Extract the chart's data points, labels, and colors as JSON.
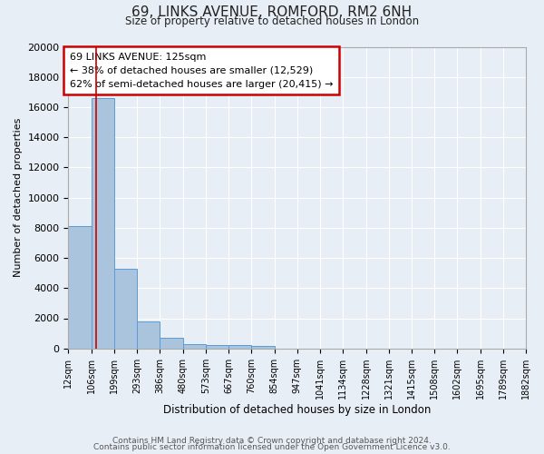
{
  "title": "69, LINKS AVENUE, ROMFORD, RM2 6NH",
  "subtitle": "Size of property relative to detached houses in London",
  "bar_values": [
    8100,
    16600,
    5300,
    1800,
    700,
    300,
    250,
    200,
    150,
    0,
    0,
    0,
    0,
    0,
    0,
    0,
    0,
    0,
    0,
    0
  ],
  "bin_labels": [
    "12sqm",
    "106sqm",
    "199sqm",
    "293sqm",
    "386sqm",
    "480sqm",
    "573sqm",
    "667sqm",
    "760sqm",
    "854sqm",
    "947sqm",
    "1041sqm",
    "1134sqm",
    "1228sqm",
    "1321sqm",
    "1415sqm",
    "1508sqm",
    "1602sqm",
    "1695sqm",
    "1789sqm",
    "1882sqm"
  ],
  "xlabel": "Distribution of detached houses by size in London",
  "ylabel": "Number of detached properties",
  "ylim": [
    0,
    20000
  ],
  "yticks": [
    0,
    2000,
    4000,
    6000,
    8000,
    10000,
    12000,
    14000,
    16000,
    18000,
    20000
  ],
  "bar_color": "#aac4de",
  "bar_edgecolor": "#5b9bd5",
  "bg_color": "#e8eef5",
  "grid_color": "#ffffff",
  "red_line_x": 125,
  "annotation_title": "69 LINKS AVENUE: 125sqm",
  "annotation_line1": "← 38% of detached houses are smaller (12,529)",
  "annotation_line2": "62% of semi-detached houses are larger (20,415) →",
  "annotation_box_color": "#ffffff",
  "annotation_box_edgecolor": "#cc0000",
  "footer1": "Contains HM Land Registry data © Crown copyright and database right 2024.",
  "footer2": "Contains public sector information licensed under the Open Government Licence v3.0.",
  "bin_edges": [
    12,
    106,
    199,
    293,
    386,
    480,
    573,
    667,
    760,
    854,
    947,
    1041,
    1134,
    1228,
    1321,
    1415,
    1508,
    1602,
    1695,
    1789,
    1882
  ]
}
